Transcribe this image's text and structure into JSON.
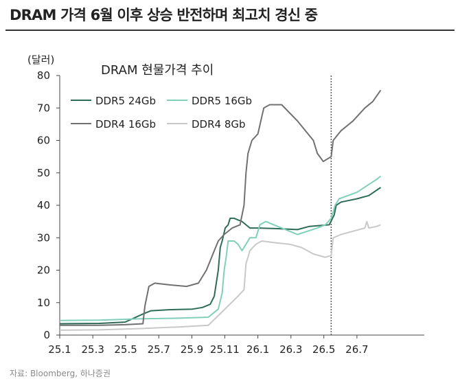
{
  "header": {
    "title": "DRAM 가격 6월 이후 상승 반전하며 최고치 경신 중"
  },
  "footer": {
    "source": "자료: Bloomberg, 하나증권"
  },
  "chart_data": {
    "type": "line",
    "title": "DRAM 현물가격 추이",
    "ylabel": "(달러)",
    "xlabel": "",
    "ylim": [
      0,
      80
    ],
    "yticks": [
      0,
      10,
      20,
      30,
      40,
      50,
      60,
      70,
      80
    ],
    "xlim": [
      2025.0,
      2026.84
    ],
    "xticks": [
      {
        "label": "25.1",
        "x": 2025.0
      },
      {
        "label": "25.3",
        "x": 2025.167
      },
      {
        "label": "25.5",
        "x": 2025.333
      },
      {
        "label": "25.7",
        "x": 2025.5
      },
      {
        "label": "25.9",
        "x": 2025.667
      },
      {
        "label": "25.11",
        "x": 2025.833
      },
      {
        "label": "26.1",
        "x": 2026.0
      },
      {
        "label": "26.3",
        "x": 2026.167
      },
      {
        "label": "26.5",
        "x": 2026.333
      },
      {
        "label": "26.7",
        "x": 2026.5
      }
    ],
    "vline_x": 2026.37,
    "legend_position": "top-left",
    "series": [
      {
        "name": "DDR5 24Gb",
        "color": "#2d6b57",
        "width": 2,
        "points": [
          [
            2025.0,
            3.5
          ],
          [
            2025.2,
            3.6
          ],
          [
            2025.33,
            4.0
          ],
          [
            2025.42,
            6.5
          ],
          [
            2025.46,
            7.5
          ],
          [
            2025.55,
            7.8
          ],
          [
            2025.67,
            8.0
          ],
          [
            2025.72,
            8.5
          ],
          [
            2025.76,
            9.5
          ],
          [
            2025.78,
            12
          ],
          [
            2025.8,
            20
          ],
          [
            2025.81,
            27
          ],
          [
            2025.82,
            29
          ],
          [
            2025.835,
            33
          ],
          [
            2025.85,
            34
          ],
          [
            2025.86,
            36
          ],
          [
            2025.88,
            36
          ],
          [
            2025.9,
            35.5
          ],
          [
            2025.92,
            35
          ],
          [
            2025.94,
            34
          ],
          [
            2025.96,
            33
          ],
          [
            2026.0,
            33
          ],
          [
            2026.1,
            32.8
          ],
          [
            2026.2,
            32.5
          ],
          [
            2026.26,
            33.5
          ],
          [
            2026.36,
            34
          ],
          [
            2026.385,
            37
          ],
          [
            2026.395,
            40
          ],
          [
            2026.42,
            41
          ],
          [
            2026.5,
            42
          ],
          [
            2026.56,
            43
          ],
          [
            2026.62,
            45.5
          ]
        ]
      },
      {
        "name": "DDR5 16Gb",
        "color": "#7fcfba",
        "width": 2,
        "points": [
          [
            2025.0,
            4.5
          ],
          [
            2025.2,
            4.6
          ],
          [
            2025.4,
            5.0
          ],
          [
            2025.6,
            5.2
          ],
          [
            2025.75,
            5.5
          ],
          [
            2025.8,
            8
          ],
          [
            2025.82,
            13
          ],
          [
            2025.83,
            20
          ],
          [
            2025.84,
            24
          ],
          [
            2025.85,
            29
          ],
          [
            2025.88,
            29
          ],
          [
            2025.9,
            28
          ],
          [
            2025.92,
            26
          ],
          [
            2025.94,
            28
          ],
          [
            2025.96,
            30
          ],
          [
            2025.99,
            30
          ],
          [
            2026.01,
            34
          ],
          [
            2026.04,
            35
          ],
          [
            2026.08,
            34
          ],
          [
            2026.12,
            33
          ],
          [
            2026.16,
            32
          ],
          [
            2026.2,
            31
          ],
          [
            2026.25,
            32
          ],
          [
            2026.3,
            33
          ],
          [
            2026.34,
            34
          ],
          [
            2026.37,
            36
          ],
          [
            2026.39,
            40
          ],
          [
            2026.41,
            42
          ],
          [
            2026.5,
            44
          ],
          [
            2026.55,
            46
          ],
          [
            2026.6,
            48
          ],
          [
            2026.62,
            49
          ]
        ]
      },
      {
        "name": "DDR4 16Gb",
        "color": "#707070",
        "width": 2,
        "points": [
          [
            2025.0,
            3.0
          ],
          [
            2025.2,
            3.0
          ],
          [
            2025.33,
            3.2
          ],
          [
            2025.42,
            3.5
          ],
          [
            2025.43,
            9
          ],
          [
            2025.45,
            15
          ],
          [
            2025.48,
            16
          ],
          [
            2025.55,
            15.5
          ],
          [
            2025.64,
            15
          ],
          [
            2025.7,
            16
          ],
          [
            2025.74,
            20
          ],
          [
            2025.78,
            26
          ],
          [
            2025.8,
            29
          ],
          [
            2025.83,
            31
          ],
          [
            2025.87,
            33
          ],
          [
            2025.91,
            34
          ],
          [
            2025.93,
            40
          ],
          [
            2025.94,
            50
          ],
          [
            2025.95,
            56
          ],
          [
            2025.97,
            60
          ],
          [
            2026.0,
            62
          ],
          [
            2026.03,
            70
          ],
          [
            2026.06,
            71
          ],
          [
            2026.12,
            71
          ],
          [
            2026.2,
            66
          ],
          [
            2026.28,
            60
          ],
          [
            2026.3,
            56
          ],
          [
            2026.33,
            53.5
          ],
          [
            2026.37,
            55
          ],
          [
            2026.38,
            60
          ],
          [
            2026.42,
            63
          ],
          [
            2026.48,
            66
          ],
          [
            2026.54,
            70
          ],
          [
            2026.58,
            72
          ],
          [
            2026.62,
            75.5
          ]
        ]
      },
      {
        "name": "DDR4 8Gb",
        "color": "#c8c8c8",
        "width": 2,
        "points": [
          [
            2025.0,
            1.5
          ],
          [
            2025.2,
            1.6
          ],
          [
            2025.4,
            2.0
          ],
          [
            2025.6,
            2.5
          ],
          [
            2025.75,
            3
          ],
          [
            2025.8,
            6
          ],
          [
            2025.85,
            9
          ],
          [
            2025.9,
            12
          ],
          [
            2025.93,
            14
          ],
          [
            2025.94,
            22
          ],
          [
            2025.96,
            26
          ],
          [
            2025.99,
            28
          ],
          [
            2026.02,
            29
          ],
          [
            2026.08,
            28.5
          ],
          [
            2026.16,
            28
          ],
          [
            2026.22,
            27
          ],
          [
            2026.28,
            25
          ],
          [
            2026.34,
            24
          ],
          [
            2026.37,
            24.5
          ],
          [
            2026.38,
            30
          ],
          [
            2026.42,
            31
          ],
          [
            2026.48,
            32
          ],
          [
            2026.54,
            33
          ],
          [
            2026.55,
            35
          ],
          [
            2026.56,
            33
          ],
          [
            2026.6,
            33.5
          ],
          [
            2026.62,
            34
          ]
        ]
      }
    ]
  }
}
